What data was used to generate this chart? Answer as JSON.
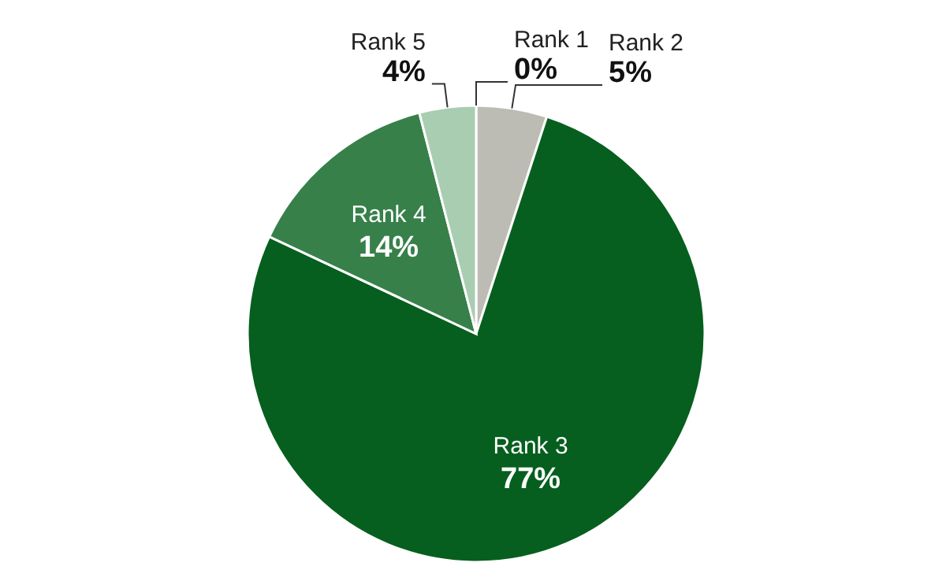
{
  "chart_data": {
    "type": "pie",
    "categories": [
      "Rank 1",
      "Rank 2",
      "Rank 3",
      "Rank 4",
      "Rank 5"
    ],
    "values": [
      0,
      5,
      77,
      14,
      4
    ],
    "value_labels": [
      "0%",
      "5%",
      "77%",
      "14%",
      "4%"
    ],
    "colors": [
      "#d0d0c8",
      "#bcbcb4",
      "#065f1e",
      "#37804a",
      "#a9cdb1"
    ]
  }
}
